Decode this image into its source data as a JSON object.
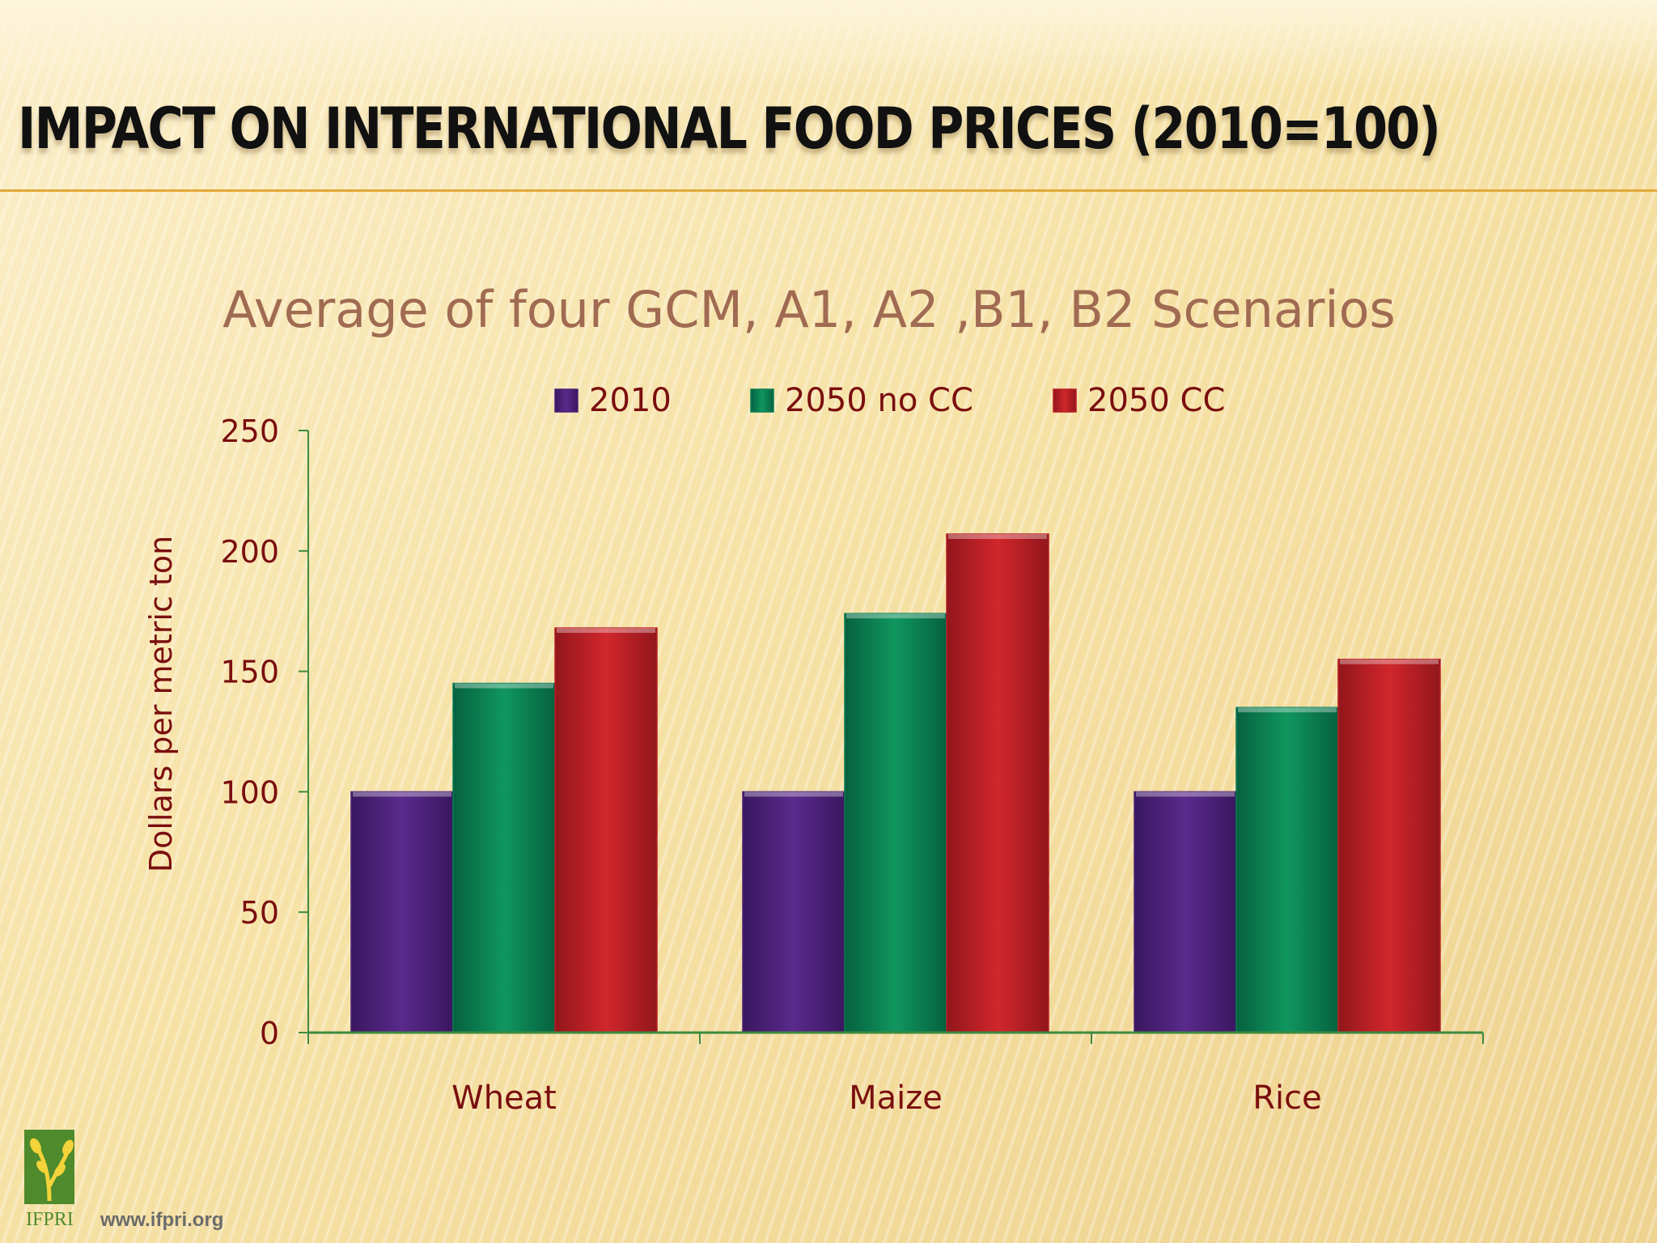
{
  "slide": {
    "title": "Impact on international food prices (2010=100)",
    "footer_logo_text": "IFPRI",
    "footer_url": "www.ifpri.org"
  },
  "colors": {
    "title": "#111111",
    "subtitle": "#a06b52",
    "axis_text": "#7a0e0e",
    "axis_line": "#3f8a3f",
    "rule": "#e0a93a",
    "series": [
      "#4b2178",
      "#0a7e52",
      "#b81e24"
    ]
  },
  "chart_data": {
    "type": "bar",
    "title": "Average of four GCM, A1, A2 ,B1, B2 Scenarios",
    "categories": [
      "Wheat",
      "Maize",
      "Rice"
    ],
    "series": [
      {
        "name": "2010",
        "values": [
          100,
          100,
          100
        ]
      },
      {
        "name": "2050 no CC",
        "values": [
          145,
          174,
          135
        ]
      },
      {
        "name": "2050 CC",
        "values": [
          168,
          207,
          155
        ]
      }
    ],
    "xlabel": "",
    "ylabel": "Dollars per metric ton",
    "ylim": [
      0,
      250
    ],
    "yticks": [
      0,
      50,
      100,
      150,
      200,
      250
    ],
    "grid": false,
    "legend_position": "top"
  }
}
